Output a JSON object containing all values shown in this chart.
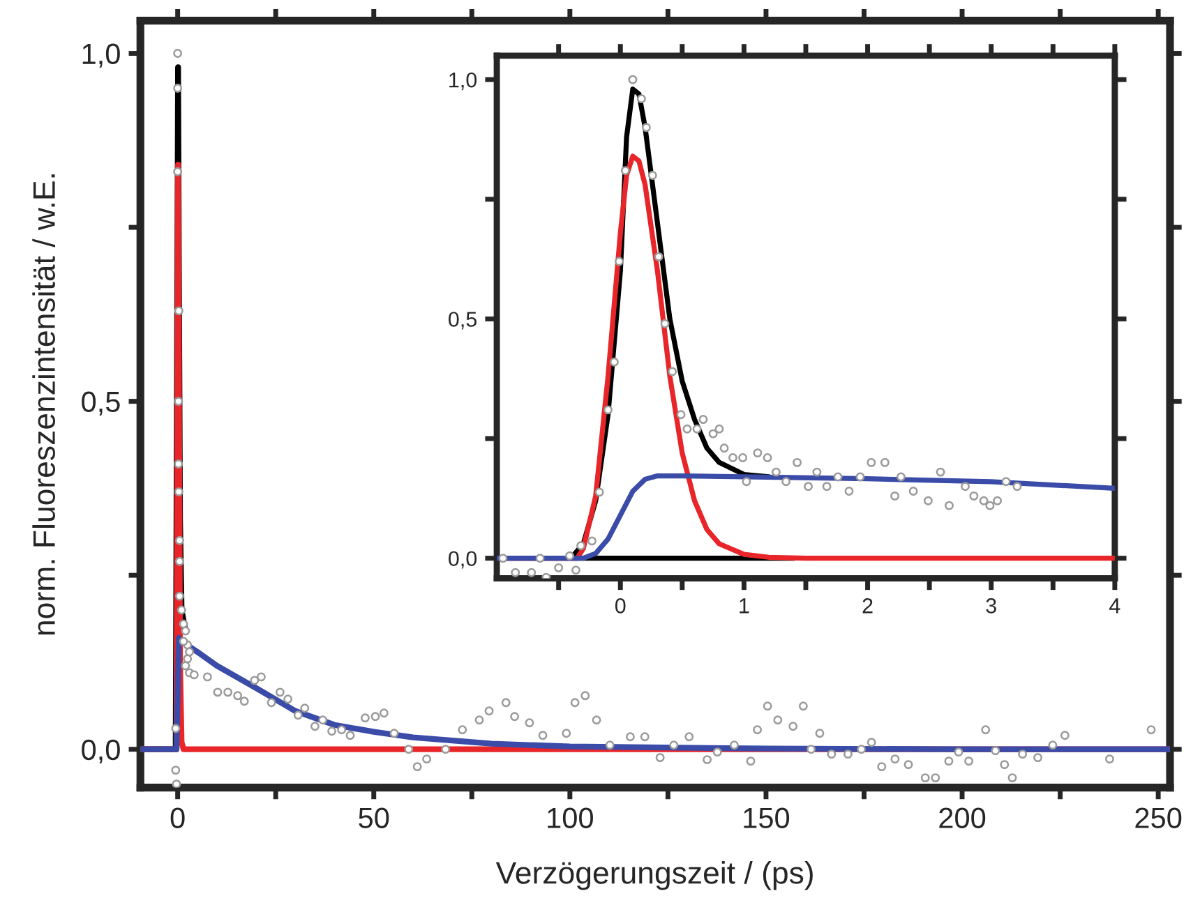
{
  "chart_data": [
    {
      "type": "line",
      "xlabel": "Verzögerungszeit / (ps)",
      "ylabel": "norm. Fluoreszenzintensität / w.E.",
      "xlim": [
        -9.5,
        253
      ],
      "ylim": [
        -0.055,
        1.047
      ],
      "xticks": [
        0,
        {
          "value": 25,
          "label": null
        },
        50,
        {
          "value": 75,
          "label": null
        },
        100,
        {
          "value": 125,
          "label": null
        },
        150,
        {
          "value": 175,
          "label": null
        },
        200,
        {
          "value": 225,
          "label": null
        },
        250
      ],
      "yticks": [
        {
          "value": 0,
          "label": "0,0"
        },
        {
          "value": 0.25,
          "label": null
        },
        {
          "value": 0.5,
          "label": "0,5"
        },
        {
          "value": 0.75,
          "label": null
        },
        {
          "value": 1,
          "label": "1,0"
        }
      ],
      "series": [
        {
          "color": "#000000",
          "x": [
            -9.5,
            -0.5,
            0,
            0.1,
            0.3,
            0.6,
            1,
            2
          ],
          "values": [
            0,
            0,
            0.8,
            0.98,
            0.7,
            0.33,
            0.2,
            0.17
          ]
        },
        {
          "color": "#e8262a",
          "x": [
            -9.5,
            -0.3,
            0,
            0.1,
            0.3,
            0.6,
            1,
            1.5,
            253
          ],
          "values": [
            0,
            0,
            0.55,
            0.84,
            0.55,
            0.12,
            0.01,
            0,
            0
          ]
        },
        {
          "color": "#3a4ba8",
          "x": [
            -9.5,
            -0.3,
            0,
            0.3,
            1,
            5,
            10,
            20,
            30,
            40,
            50,
            60,
            80,
            100,
            150,
            200,
            253
          ],
          "values": [
            0,
            0,
            0.08,
            0.16,
            0.155,
            0.14,
            0.12,
            0.088,
            0.055,
            0.035,
            0.025,
            0.017,
            0.008,
            0.004,
            0.001,
            0,
            0
          ]
        },
        {
          "type": "scatter",
          "color": "#9a9a9a",
          "marker": "circle",
          "x": [
            0,
            0,
            0,
            0.3,
            0.2,
            0.2,
            0.3,
            0.5,
            0.5,
            0.5,
            1,
            1.5,
            2,
            2.5,
            3,
            2,
            -0.5,
            -0.3,
            -0.5,
            1.5,
            3,
            2.5,
            4.2,
            7.6,
            10.2,
            12.8,
            15.3,
            17.0,
            19.6,
            21.3,
            23.9,
            26.1,
            28.1,
            30.7,
            32.4,
            35.0,
            37.0,
            39.3,
            41.8,
            44.0,
            47.8,
            50.4,
            52.6,
            55.2,
            58.9,
            61.1,
            63.5,
            68.3,
            72.6,
            76.9,
            79.4,
            83.7,
            85.9,
            89.7,
            93.1,
            99.1,
            101.3,
            103.9,
            106.8,
            110.2,
            115.4,
            119.1,
            123.0,
            126.5,
            130.4,
            135.0,
            137.6,
            141.9,
            146.1,
            147.8,
            150.4,
            153.0,
            156.9,
            159.5,
            161.5,
            163.7,
            166.7,
            170.9,
            174.3,
            176.9,
            179.5,
            182.9,
            186.3,
            190.6,
            193.2,
            196.6,
            199.1,
            201.7,
            206.0,
            208.5,
            210.8,
            212.8,
            215.4,
            219.3,
            223.1,
            226.2,
            237.6,
            248.2
          ],
          "values": [
            1.0,
            0.95,
            0.83,
            0.63,
            0.5,
            0.41,
            0.37,
            0.3,
            0.27,
            0.22,
            0.2,
            0.18,
            0.17,
            0.15,
            0.14,
            0.12,
            -0.03,
            -0.05,
            0.03,
            0.155,
            0.11,
            0.13,
            0.107,
            0.104,
            0.082,
            0.082,
            0.077,
            0.069,
            0.099,
            0.104,
            0.067,
            0.082,
            0.072,
            0.049,
            0.059,
            0.033,
            0.042,
            0.026,
            0.028,
            0.02,
            0.045,
            0.047,
            0.052,
            0.023,
            0.0,
            -0.025,
            -0.014,
            0.0,
            0.028,
            0.042,
            0.055,
            0.067,
            0.047,
            0.038,
            0.02,
            0.023,
            0.067,
            0.077,
            0.042,
            0.006,
            0.018,
            0.018,
            -0.012,
            0.006,
            0.018,
            -0.015,
            -0.004,
            0.006,
            -0.017,
            0.028,
            0.062,
            0.042,
            0.033,
            0.062,
            0.0,
            0.023,
            -0.007,
            -0.007,
            0.0,
            0.01,
            -0.025,
            -0.014,
            -0.022,
            -0.041,
            -0.041,
            -0.017,
            -0.004,
            -0.017,
            0.028,
            -0.002,
            -0.022,
            -0.041,
            -0.007,
            -0.012,
            0.006,
            0.02,
            -0.014,
            0.028
          ]
        }
      ]
    },
    {
      "type": "line",
      "xlim": [
        -1.0,
        4.0
      ],
      "ylim": [
        -0.042,
        1.05
      ],
      "xticks": [
        {
          "value": -0.5,
          "label": null
        },
        0,
        {
          "value": 0.5,
          "label": null
        },
        1,
        {
          "value": 1.5,
          "label": null
        },
        2,
        {
          "value": 2.5,
          "label": null
        },
        3,
        {
          "value": 3.5,
          "label": null
        },
        4
      ],
      "yticks": [
        {
          "value": 0,
          "label": "0,0"
        },
        {
          "value": 0.25,
          "label": null
        },
        {
          "value": 0.5,
          "label": "0,5"
        },
        {
          "value": 0.75,
          "label": null
        },
        {
          "value": 1,
          "label": "1,0"
        }
      ],
      "series": [
        {
          "color": "#000000",
          "x": [
            -0.4,
            1.4
          ],
          "values": [
            0,
            0
          ]
        },
        {
          "color": "#000000",
          "x": [
            -1,
            -0.4,
            -0.3,
            -0.2,
            -0.1,
            0,
            0.05,
            0.1,
            0.15,
            0.2,
            0.3,
            0.4,
            0.5,
            0.6,
            0.7,
            0.8,
            1.0,
            1.2
          ],
          "values": [
            0,
            0,
            0.03,
            0.12,
            0.3,
            0.6,
            0.88,
            0.98,
            0.97,
            0.9,
            0.7,
            0.5,
            0.37,
            0.29,
            0.23,
            0.2,
            0.175,
            0.17
          ]
        },
        {
          "color": "#e8262a",
          "x": [
            -1,
            -0.35,
            -0.3,
            -0.2,
            -0.1,
            0,
            0.05,
            0.1,
            0.15,
            0.2,
            0.3,
            0.4,
            0.5,
            0.6,
            0.7,
            0.8,
            1.0,
            1.2,
            1.5,
            4
          ],
          "values": [
            0,
            0,
            0.02,
            0.13,
            0.38,
            0.68,
            0.8,
            0.84,
            0.83,
            0.78,
            0.6,
            0.38,
            0.22,
            0.12,
            0.06,
            0.03,
            0.008,
            0.002,
            0,
            0
          ]
        },
        {
          "color": "#3a4ba8",
          "x": [
            -1,
            -0.3,
            -0.2,
            -0.1,
            0,
            0.1,
            0.2,
            0.3,
            0.5,
            1,
            2,
            3,
            4
          ],
          "values": [
            0,
            0,
            0.01,
            0.04,
            0.09,
            0.14,
            0.165,
            0.172,
            0.172,
            0.17,
            0.166,
            0.16,
            0.146
          ]
        },
        {
          "type": "scatter",
          "color": "#9a9a9a",
          "marker": "circle",
          "x": [
            -0.95,
            -0.85,
            -0.72,
            -0.65,
            -0.6,
            -0.5,
            -0.41,
            -0.36,
            -0.32,
            -0.23,
            -0.17,
            -0.1,
            -0.05,
            -0.01,
            0.04,
            0.1,
            0.17,
            0.21,
            0.26,
            0.31,
            0.36,
            0.42,
            0.49,
            0.54,
            0.62,
            0.67,
            0.75,
            0.8,
            0.84,
            0.91,
            0.99,
            1.02,
            1.11,
            1.19,
            1.26,
            1.34,
            1.43,
            1.52,
            1.59,
            1.67,
            1.76,
            1.85,
            1.94,
            2.03,
            2.14,
            2.22,
            2.27,
            2.37,
            2.49,
            2.59,
            2.66,
            2.79,
            2.86,
            2.94,
            2.99,
            3.05,
            3.12,
            3.21
          ],
          "values": [
            0.0,
            -0.03,
            -0.03,
            0.0,
            -0.04,
            -0.02,
            0.005,
            -0.025,
            0.026,
            0.036,
            0.138,
            0.31,
            0.41,
            0.62,
            0.81,
            1.0,
            0.96,
            0.9,
            0.8,
            0.63,
            0.49,
            0.39,
            0.3,
            0.27,
            0.27,
            0.29,
            0.26,
            0.27,
            0.23,
            0.21,
            0.21,
            0.16,
            0.22,
            0.21,
            0.18,
            0.16,
            0.2,
            0.15,
            0.18,
            0.15,
            0.17,
            0.14,
            0.17,
            0.2,
            0.2,
            0.13,
            0.17,
            0.14,
            0.12,
            0.18,
            0.11,
            0.15,
            0.13,
            0.12,
            0.11,
            0.12,
            0.16,
            0.15
          ]
        }
      ]
    }
  ]
}
